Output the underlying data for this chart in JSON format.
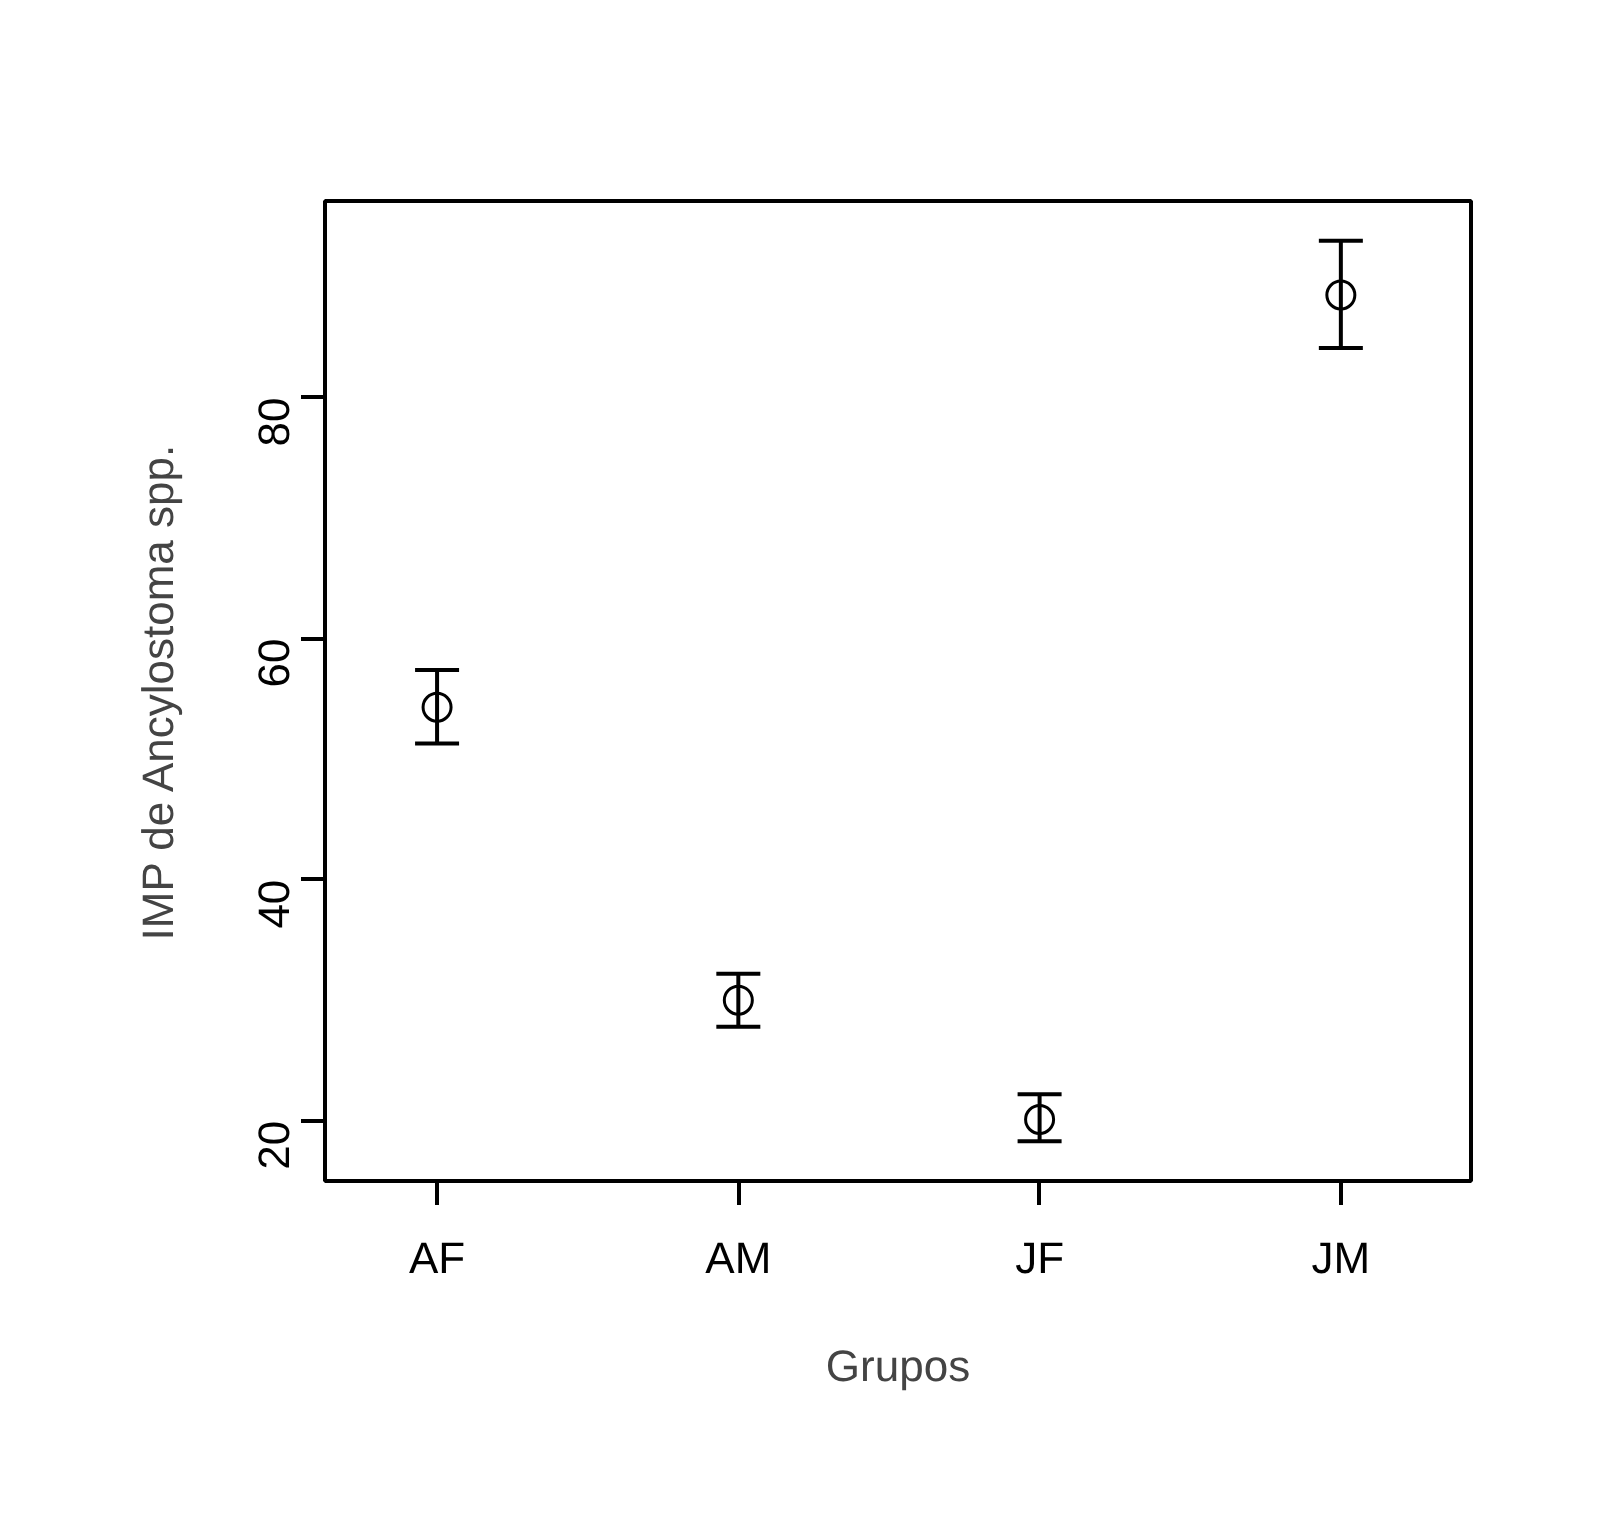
{
  "chart_data": {
    "type": "scatter",
    "xlabel": "Grupos",
    "ylabel": "IMP de Ancylostoma spp.",
    "categories": [
      "AF",
      "AM",
      "JF",
      "JM"
    ],
    "series": [
      {
        "color": "#000000",
        "values": [
          54.3,
          30.0,
          20.1,
          88.5
        ],
        "errors": [
          [
            51.3,
            57.4
          ],
          [
            27.8,
            32.2
          ],
          [
            18.3,
            22.2
          ],
          [
            84.1,
            93.0
          ]
        ]
      }
    ],
    "ylim": [
      15,
      96.3
    ],
    "yticks": [
      20,
      40,
      60,
      80
    ],
    "marker": "circle",
    "grid": false
  }
}
